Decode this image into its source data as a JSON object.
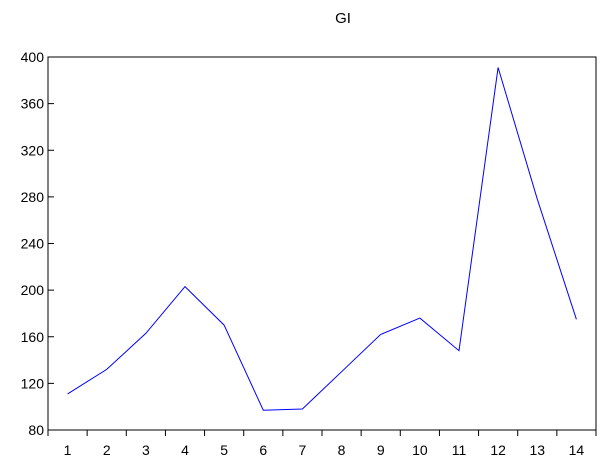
{
  "chart_data": {
    "type": "line",
    "title": "GI",
    "xlabel": "",
    "ylabel": "",
    "x": [
      1,
      2,
      3,
      4,
      5,
      6,
      7,
      8,
      9,
      10,
      11,
      12,
      13,
      14
    ],
    "series": [
      {
        "values": [
          111,
          132,
          163,
          203,
          170,
          97,
          98,
          130,
          162,
          176,
          148,
          391,
          278,
          175
        ],
        "color": "#0000ff"
      }
    ],
    "ylim": [
      80,
      400
    ],
    "yticks": [
      80,
      120,
      160,
      200,
      240,
      280,
      320,
      360,
      400
    ],
    "grid": false,
    "legend": "none"
  }
}
